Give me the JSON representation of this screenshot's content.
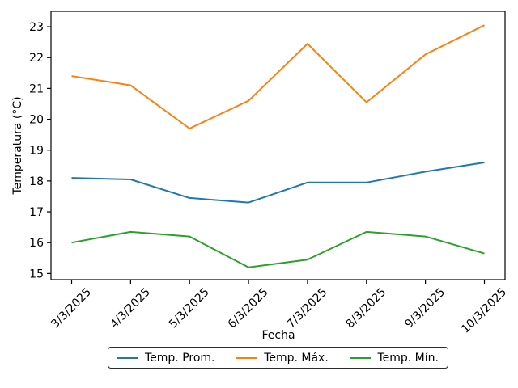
{
  "chart_data": {
    "type": "line",
    "x_categories": [
      "3/3/2025",
      "4/3/2025",
      "5/3/2025",
      "6/3/2025",
      "7/3/2025",
      "8/3/2025",
      "9/3/2025",
      "10/3/2025"
    ],
    "series": [
      {
        "id": "temp-prom",
        "name": "Temp. Prom.",
        "color": "#1f77b4",
        "values": [
          18.1,
          18.05,
          17.45,
          17.3,
          17.95,
          17.95,
          18.3,
          18.6
        ]
      },
      {
        "id": "temp-max",
        "name": "Temp. Máx.",
        "color": "#ff7f0e",
        "values": [
          21.4,
          21.1,
          19.7,
          20.6,
          22.45,
          20.55,
          22.1,
          23.05
        ]
      },
      {
        "id": "temp-min",
        "name": "Temp. Mín.",
        "color": "#2ca02c",
        "values": [
          16.0,
          16.35,
          16.2,
          15.2,
          15.45,
          16.35,
          16.2,
          15.65
        ]
      }
    ],
    "xlabel": "Fecha",
    "ylabel": "Temperatura (°C)",
    "yticks": [
      15,
      16,
      17,
      18,
      19,
      20,
      21,
      22,
      23
    ],
    "ylim": [
      14.8,
      23.5
    ],
    "x_margin": 0.35,
    "grid": false,
    "legend_position": "bottom-center",
    "line_width": 2,
    "axis_color": "#000000",
    "text_color": "#000000",
    "background": "#ffffff"
  }
}
